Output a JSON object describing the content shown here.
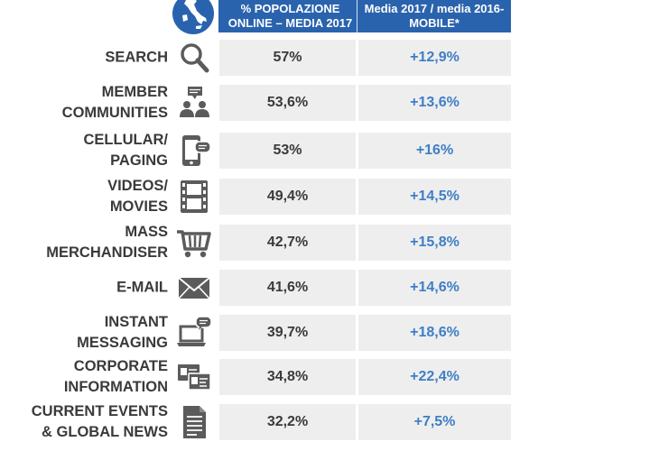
{
  "colors": {
    "header_bg": "#2a63ad",
    "label_text": "#3a3a3a",
    "change_text": "#3f7ec6",
    "cell_bg": "#eeeeee",
    "icon": "#5b5b5b"
  },
  "headers": {
    "col1": [
      "% POPOLAZIONE",
      "ONLINE – MEDIA 2017"
    ],
    "col2": [
      "Media 2017 / media 2016-",
      "MOBILE*"
    ]
  },
  "rows": [
    {
      "label": [
        "SEARCH"
      ],
      "icon": "search-icon",
      "value": "57%",
      "change": "+12,9%"
    },
    {
      "label": [
        "MEMBER",
        "COMMUNITIES"
      ],
      "icon": "community-icon",
      "value": "53,6%",
      "change": "+13,6%"
    },
    {
      "label": [
        "CELLULAR/",
        "PAGING"
      ],
      "icon": "mobile-phone-icon",
      "value": "53%",
      "change": "+16%"
    },
    {
      "label": [
        "VIDEOS/",
        "MOVIES"
      ],
      "icon": "film-strip-icon",
      "value": "49,4%",
      "change": "+14,5%"
    },
    {
      "label": [
        "MASS",
        "MERCHANDISER"
      ],
      "icon": "shopping-cart-icon",
      "value": "42,7%",
      "change": "+15,8%"
    },
    {
      "label": [
        "E-MAIL"
      ],
      "icon": "envelope-icon",
      "value": "41,6%",
      "change": "+14,6%"
    },
    {
      "label": [
        "INSTANT",
        "MESSAGING"
      ],
      "icon": "laptop-chat-icon",
      "value": "39,7%",
      "change": "+18,6%"
    },
    {
      "label": [
        "CORPORATE",
        "INFORMATION"
      ],
      "icon": "id-cards-icon",
      "value": "34,8%",
      "change": "+22,4%"
    },
    {
      "label": [
        "CURRENT EVENTS",
        "& GLOBAL NEWS"
      ],
      "icon": "document-icon",
      "value": "32,2%",
      "change": "+7,5%"
    }
  ],
  "chart_data": {
    "type": "table",
    "columns": [
      "% POPOLAZIONE ONLINE – MEDIA 2017",
      "Media 2017 / media 2016- MOBILE*"
    ],
    "categories": [
      "SEARCH",
      "MEMBER COMMUNITIES",
      "CELLULAR/ PAGING",
      "VIDEOS/ MOVIES",
      "MASS MERCHANDISER",
      "E-MAIL",
      "INSTANT MESSAGING",
      "CORPORATE INFORMATION",
      "CURRENT EVENTS & GLOBAL NEWS"
    ],
    "series": [
      {
        "name": "% POPOLAZIONE ONLINE – MEDIA 2017",
        "values": [
          57,
          53.6,
          53,
          49.4,
          42.7,
          41.6,
          39.7,
          34.8,
          32.2
        ]
      },
      {
        "name": "Media 2017 / media 2016- MOBILE*",
        "values": [
          12.9,
          13.6,
          16,
          14.5,
          15.8,
          14.6,
          18.6,
          22.4,
          7.5
        ]
      }
    ]
  }
}
